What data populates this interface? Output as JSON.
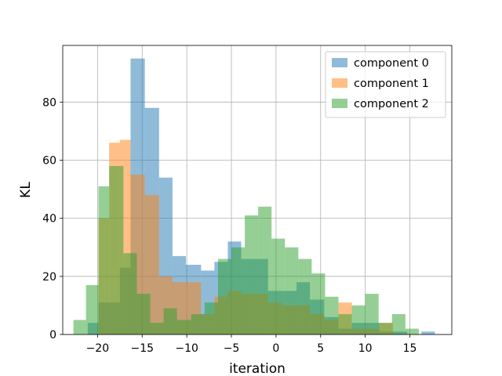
{
  "chart_data": {
    "type": "histogram",
    "title": "",
    "xlabel": "iteration",
    "ylabel": "KL",
    "xlim": [
      -23.9,
      19.7
    ],
    "ylim": [
      0,
      99.5
    ],
    "xticks": [
      -20,
      -15,
      -10,
      -5,
      0,
      5,
      10,
      15
    ],
    "yticks": [
      0,
      20,
      40,
      60,
      80
    ],
    "grid": true,
    "legend_position": "top-right",
    "bar_alpha": 0.5,
    "series": [
      {
        "name": "component 0",
        "color": "#1f77b4",
        "bins": [
          {
            "x0": -21.1,
            "x1": -19.9,
            "count": 4
          },
          {
            "x0": -19.9,
            "x1": -18.7,
            "count": 11
          },
          {
            "x0": -18.7,
            "x1": -17.5,
            "count": 11
          },
          {
            "x0": -17.5,
            "x1": -16.3,
            "count": 23
          },
          {
            "x0": -16.3,
            "x1": -14.7,
            "count": 95
          },
          {
            "x0": -14.7,
            "x1": -13.1,
            "count": 78
          },
          {
            "x0": -13.1,
            "x1": -11.6,
            "count": 54
          },
          {
            "x0": -11.6,
            "x1": -10.1,
            "count": 27
          },
          {
            "x0": -10.1,
            "x1": -8.4,
            "count": 24
          },
          {
            "x0": -8.4,
            "x1": -6.9,
            "count": 22
          },
          {
            "x0": -6.9,
            "x1": -5.4,
            "count": 25
          },
          {
            "x0": -5.4,
            "x1": -3.9,
            "count": 32
          },
          {
            "x0": -3.9,
            "x1": -2.4,
            "count": 26
          },
          {
            "x0": -2.4,
            "x1": -0.9,
            "count": 26
          },
          {
            "x0": -0.9,
            "x1": 0.7,
            "count": 15
          },
          {
            "x0": 0.7,
            "x1": 2.3,
            "count": 15
          },
          {
            "x0": 2.3,
            "x1": 3.8,
            "count": 18
          },
          {
            "x0": 3.8,
            "x1": 5.4,
            "count": 12
          },
          {
            "x0": 5.4,
            "x1": 7.0,
            "count": 6
          },
          {
            "x0": 7.0,
            "x1": 8.5,
            "count": 2
          },
          {
            "x0": 8.5,
            "x1": 10.0,
            "count": 4
          },
          {
            "x0": 10.0,
            "x1": 11.6,
            "count": 4
          },
          {
            "x0": 11.6,
            "x1": 13.1,
            "count": 1
          },
          {
            "x0": 13.1,
            "x1": 14.7,
            "count": 1
          },
          {
            "x0": 14.7,
            "x1": 16.3,
            "count": 0
          },
          {
            "x0": 16.3,
            "x1": 17.8,
            "count": 1
          }
        ]
      },
      {
        "name": "component 1",
        "color": "#ff7f0e",
        "bins": [
          {
            "x0": -19.9,
            "x1": -18.7,
            "count": 40
          },
          {
            "x0": -18.7,
            "x1": -17.5,
            "count": 66
          },
          {
            "x0": -17.5,
            "x1": -16.3,
            "count": 67
          },
          {
            "x0": -16.3,
            "x1": -14.7,
            "count": 55
          },
          {
            "x0": -14.7,
            "x1": -13.1,
            "count": 48
          },
          {
            "x0": -13.1,
            "x1": -11.6,
            "count": 20
          },
          {
            "x0": -11.6,
            "x1": -10.1,
            "count": 18
          },
          {
            "x0": -10.1,
            "x1": -8.4,
            "count": 18
          },
          {
            "x0": -8.4,
            "x1": -6.9,
            "count": 7
          },
          {
            "x0": -6.9,
            "x1": -5.4,
            "count": 13
          },
          {
            "x0": -5.4,
            "x1": -3.9,
            "count": 15
          },
          {
            "x0": -3.9,
            "x1": -2.4,
            "count": 14
          },
          {
            "x0": -2.4,
            "x1": -0.9,
            "count": 14
          },
          {
            "x0": -0.9,
            "x1": 0.7,
            "count": 11
          },
          {
            "x0": 0.7,
            "x1": 2.3,
            "count": 10
          },
          {
            "x0": 2.3,
            "x1": 3.8,
            "count": 10
          },
          {
            "x0": 3.8,
            "x1": 5.4,
            "count": 7
          },
          {
            "x0": 5.4,
            "x1": 7.0,
            "count": 5
          },
          {
            "x0": 7.0,
            "x1": 8.5,
            "count": 11
          },
          {
            "x0": 8.5,
            "x1": 10.0,
            "count": 2
          },
          {
            "x0": 10.0,
            "x1": 11.6,
            "count": 2
          },
          {
            "x0": 11.6,
            "x1": 13.1,
            "count": 4
          },
          {
            "x0": 13.1,
            "x1": 14.7,
            "count": 0
          }
        ]
      },
      {
        "name": "component 2",
        "color": "#2ca02c",
        "bins": [
          {
            "x0": -22.7,
            "x1": -21.3,
            "count": 5
          },
          {
            "x0": -21.3,
            "x1": -19.9,
            "count": 17
          },
          {
            "x0": -19.9,
            "x1": -18.7,
            "count": 51
          },
          {
            "x0": -18.7,
            "x1": -17.1,
            "count": 58
          },
          {
            "x0": -17.1,
            "x1": -15.6,
            "count": 28
          },
          {
            "x0": -15.6,
            "x1": -14.1,
            "count": 14
          },
          {
            "x0": -14.1,
            "x1": -12.6,
            "count": 4
          },
          {
            "x0": -12.6,
            "x1": -11.1,
            "count": 9
          },
          {
            "x0": -11.1,
            "x1": -9.5,
            "count": 5
          },
          {
            "x0": -9.5,
            "x1": -8.0,
            "count": 7
          },
          {
            "x0": -8.0,
            "x1": -6.5,
            "count": 11
          },
          {
            "x0": -6.5,
            "x1": -5.0,
            "count": 26
          },
          {
            "x0": -5.0,
            "x1": -3.5,
            "count": 30
          },
          {
            "x0": -3.5,
            "x1": -2.0,
            "count": 41
          },
          {
            "x0": -2.0,
            "x1": -0.5,
            "count": 44
          },
          {
            "x0": -0.5,
            "x1": 1.0,
            "count": 33
          },
          {
            "x0": 1.0,
            "x1": 2.5,
            "count": 30
          },
          {
            "x0": 2.5,
            "x1": 4.0,
            "count": 26
          },
          {
            "x0": 4.0,
            "x1": 5.5,
            "count": 21
          },
          {
            "x0": 5.5,
            "x1": 7.0,
            "count": 13
          },
          {
            "x0": 7.0,
            "x1": 8.5,
            "count": 7
          },
          {
            "x0": 8.5,
            "x1": 10.0,
            "count": 10
          },
          {
            "x0": 10.0,
            "x1": 11.5,
            "count": 14
          },
          {
            "x0": 11.5,
            "x1": 13.0,
            "count": 4
          },
          {
            "x0": 13.0,
            "x1": 14.5,
            "count": 7
          },
          {
            "x0": 14.5,
            "x1": 16.0,
            "count": 2
          }
        ]
      }
    ]
  }
}
